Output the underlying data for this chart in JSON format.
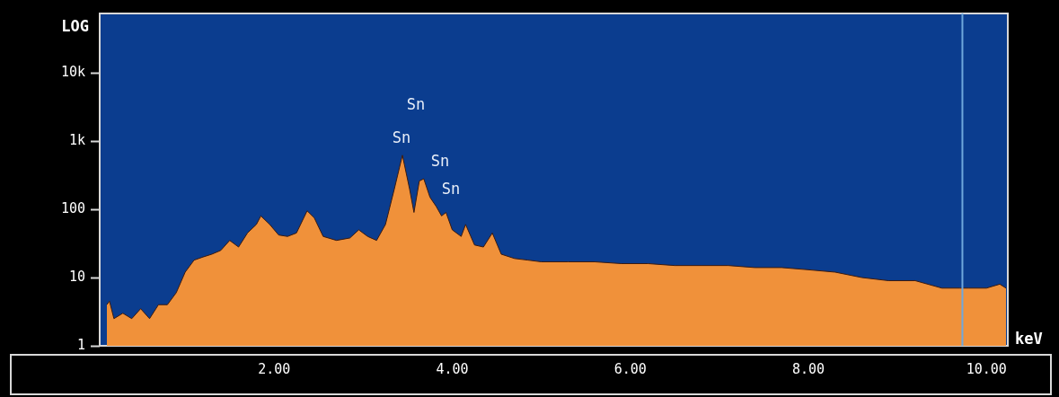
{
  "chart_data": {
    "type": "area",
    "ylabel": "LOG",
    "xlabel": "keV",
    "log": "y",
    "grid": false,
    "legend": false,
    "xlim": [
      0.04,
      10.24
    ],
    "ylim": [
      1,
      74000
    ],
    "xticks": [
      {
        "value": 2,
        "label": "2.00"
      },
      {
        "value": 4,
        "label": "4.00"
      },
      {
        "value": 6,
        "label": "6.00"
      },
      {
        "value": 8,
        "label": "8.00"
      },
      {
        "value": 10,
        "label": "10.00"
      }
    ],
    "yticks": [
      1,
      10,
      100,
      {
        "value": 1000,
        "label": "1k"
      },
      {
        "value": 10000,
        "label": "10k"
      }
    ],
    "ref_lines": [
      {
        "axis": "x",
        "value": 9.73,
        "color": "#6fa8dc"
      }
    ],
    "annotations": [
      "Sn",
      "Sn",
      "Sn",
      "Sn"
    ],
    "series": [
      {
        "color": "#f0913a",
        "x": [
          0.12,
          0.15,
          0.2,
          0.3,
          0.4,
          0.5,
          0.6,
          0.7,
          0.8,
          0.9,
          1.0,
          1.1,
          1.2,
          1.3,
          1.4,
          1.5,
          1.6,
          1.7,
          1.8,
          1.85,
          1.95,
          2.05,
          2.15,
          2.25,
          2.37,
          2.45,
          2.55,
          2.7,
          2.85,
          2.95,
          3.05,
          3.15,
          3.25,
          3.35,
          3.44,
          3.52,
          3.57,
          3.63,
          3.68,
          3.75,
          3.82,
          3.88,
          3.93,
          4.0,
          4.1,
          4.15,
          4.25,
          4.35,
          4.45,
          4.55,
          4.7,
          4.85,
          5.0,
          5.3,
          5.6,
          5.9,
          6.2,
          6.5,
          6.8,
          7.1,
          7.4,
          7.7,
          8.0,
          8.3,
          8.6,
          8.9,
          9.2,
          9.5,
          9.7,
          9.8,
          10.0,
          10.15,
          10.22
        ],
        "values": [
          4,
          4.5,
          2.5,
          3,
          2.5,
          3.5,
          2.5,
          4,
          4,
          6,
          12,
          18,
          20,
          22,
          25,
          35,
          28,
          45,
          60,
          80,
          60,
          42,
          40,
          45,
          95,
          75,
          40,
          35,
          38,
          50,
          40,
          35,
          60,
          200,
          620,
          200,
          90,
          260,
          280,
          150,
          110,
          80,
          90,
          50,
          40,
          60,
          30,
          28,
          45,
          22,
          19,
          18,
          17,
          17,
          17,
          16,
          16,
          15,
          15,
          15,
          14,
          14,
          13,
          12,
          10,
          9,
          9,
          7,
          7,
          7,
          7,
          8,
          7
        ]
      }
    ]
  }
}
